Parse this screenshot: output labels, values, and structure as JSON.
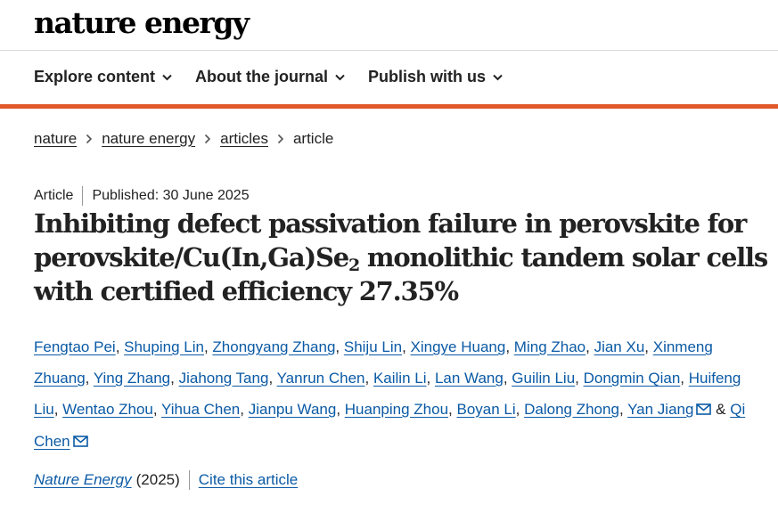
{
  "site": {
    "logo": "nature energy"
  },
  "nav": [
    {
      "label": "Explore content"
    },
    {
      "label": "About the journal"
    },
    {
      "label": "Publish with us"
    }
  ],
  "breadcrumb": {
    "items": [
      "nature",
      "nature energy",
      "articles"
    ],
    "current": "article"
  },
  "article": {
    "type": "Article",
    "published": "Published: 30 June 2025",
    "title_part1": "Inhibiting defect passivation failure in perovskite for perovskite/Cu(In,Ga)Se",
    "title_sub": "2",
    "title_part2": " monolithic tandem solar cells with certified efficiency 27.35%",
    "authors": [
      "Fengtao Pei",
      "Shuping Lin",
      "Zhongyang Zhang",
      "Shiju Lin",
      "Xingye Huang",
      "Ming Zhao",
      "Jian Xu",
      "Xinmeng Zhuang",
      "Ying Zhang",
      "Jiahong Tang",
      "Yanrun Chen",
      "Kailin Li",
      "Lan Wang",
      "Guilin Liu",
      "Dongmin Qian",
      "Huifeng Liu",
      "Wentao Zhou",
      "Yihua Chen",
      "Jianpu Wang",
      "Huanping Zhou",
      "Boyan Li",
      "Dalong Zhong",
      "Yan Jiang",
      "Qi Chen"
    ],
    "amp": "&",
    "journal": "Nature Energy",
    "year": "(2025)",
    "cite_label": "Cite this article"
  },
  "colors": {
    "accent": "#e1582c",
    "link": "#0b5aa5",
    "text": "#222222"
  },
  "icons": {
    "nav_chevron": "chevron-down-icon",
    "breadcrumb_sep": "chevron-right-icon",
    "corresponding": "mail-icon"
  }
}
